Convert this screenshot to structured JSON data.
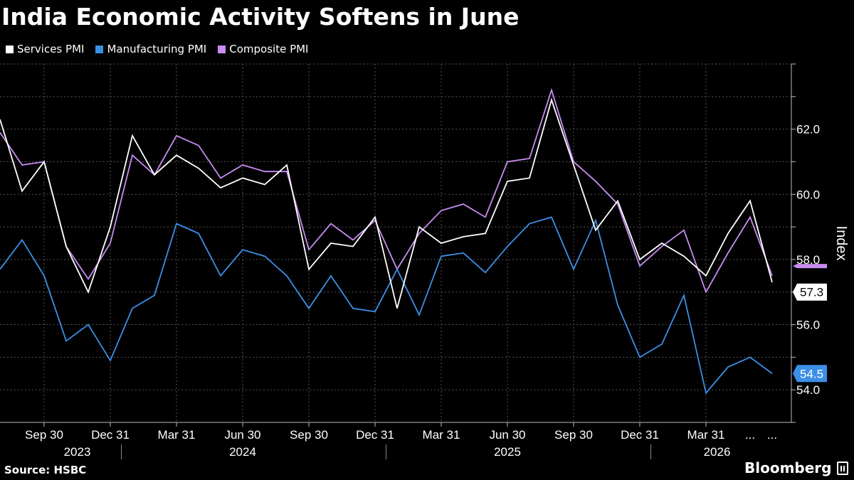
{
  "chart_data": {
    "type": "line",
    "title": "India Economic Activity Softens in June",
    "ylabel": "Index",
    "source": "Source: HSBC",
    "brand": "Bloomberg",
    "ylim": [
      53.0,
      64.0
    ],
    "yticks": [
      "54.0",
      "56.0",
      "58.0",
      "60.0",
      "62.0"
    ],
    "ytick_values": [
      54,
      56,
      58,
      60,
      62
    ],
    "grid": true,
    "legend_position": "top-left",
    "x": [
      "2023-07",
      "2023-08",
      "2023-09",
      "2023-10",
      "2023-11",
      "2023-12",
      "2024-01",
      "2024-02",
      "2024-03",
      "2024-04",
      "2024-05",
      "2024-06",
      "2024-07",
      "2024-08",
      "2024-09",
      "2024-10",
      "2024-11",
      "2024-12",
      "2025-01",
      "2025-02",
      "2025-03",
      "2025-04",
      "2025-05",
      "2025-06",
      "2025-07",
      "2025-08",
      "2025-09",
      "2025-10",
      "2025-11",
      "2025-12",
      "2026-01",
      "2026-02",
      "2026-03",
      "2026-04",
      "2026-05",
      "2026-06"
    ],
    "xtick_labels": [
      {
        "label": "Sep 30",
        "index": 2
      },
      {
        "label": "Dec 31",
        "index": 5
      },
      {
        "label": "Mar 31",
        "index": 8
      },
      {
        "label": "Jun 30",
        "index": 11
      },
      {
        "label": "Sep 30",
        "index": 14
      },
      {
        "label": "Dec 31",
        "index": 17
      },
      {
        "label": "Mar 31",
        "index": 20
      },
      {
        "label": "Jun 30",
        "index": 23
      },
      {
        "label": "Sep 30",
        "index": 26
      },
      {
        "label": "Dec 31",
        "index": 29
      },
      {
        "label": "Mar 31",
        "index": 32
      },
      {
        "label": "...",
        "index": 34
      },
      {
        "label": "...",
        "index": 35
      }
    ],
    "year_labels": [
      {
        "label": "2023",
        "index": 3.5
      },
      {
        "label": "2024",
        "index": 11
      },
      {
        "label": "2025",
        "index": 23
      },
      {
        "label": "2026",
        "index": 32.5
      }
    ],
    "year_separators": [
      5.5,
      17.5,
      29.5
    ],
    "series": [
      {
        "name": "Services PMI",
        "color": "#ffffff",
        "values": [
          62.3,
          60.1,
          61.0,
          58.4,
          57.0,
          59.0,
          61.8,
          60.6,
          61.2,
          60.8,
          60.2,
          60.5,
          60.3,
          60.9,
          57.7,
          58.5,
          58.4,
          59.3,
          56.5,
          59.0,
          58.5,
          58.7,
          58.8,
          60.4,
          60.5,
          62.9,
          60.9,
          58.9,
          59.8,
          58.0,
          58.5,
          58.1,
          57.5,
          58.8,
          59.8,
          57.3
        ],
        "end_label": "57.3"
      },
      {
        "name": "Manufacturing PMI",
        "color": "#3c8fe6",
        "values": [
          57.7,
          58.6,
          57.5,
          55.5,
          56.0,
          54.9,
          56.5,
          56.9,
          59.1,
          58.8,
          57.5,
          58.3,
          58.1,
          57.5,
          56.5,
          57.5,
          56.5,
          56.4,
          57.7,
          56.3,
          58.1,
          58.2,
          57.6,
          58.4,
          59.1,
          59.3,
          57.7,
          59.2,
          56.6,
          55.0,
          55.4,
          56.9,
          53.9,
          54.7,
          55.0,
          54.5
        ],
        "end_label": "54.5"
      },
      {
        "name": "Composite PMI",
        "color": "#c88cf0",
        "values": [
          61.9,
          60.9,
          61.0,
          58.4,
          57.4,
          58.5,
          61.2,
          60.6,
          61.8,
          61.5,
          60.5,
          60.9,
          60.7,
          60.7,
          58.3,
          59.1,
          58.6,
          59.2,
          57.7,
          58.8,
          59.5,
          59.7,
          59.3,
          61.0,
          61.1,
          63.2,
          61.0,
          60.4,
          59.7,
          57.8,
          58.4,
          58.9,
          57.0,
          58.2,
          59.3,
          57.5
        ],
        "end_label": ""
      }
    ]
  }
}
